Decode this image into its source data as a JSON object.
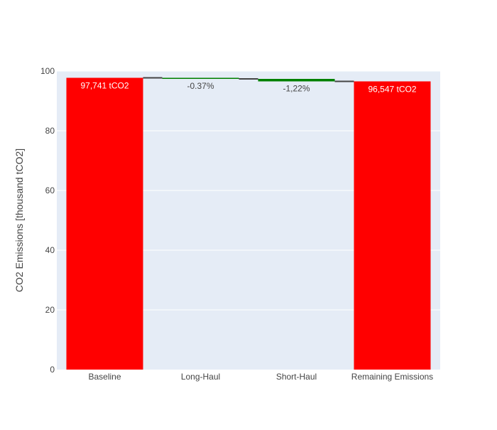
{
  "chart_data": {
    "type": "waterfall",
    "title": "",
    "xlabel": "",
    "ylabel": "CO2 Emissions [thousand tCO2]",
    "ylim": [
      0,
      100
    ],
    "yticks": [
      0,
      20,
      40,
      60,
      80,
      100
    ],
    "grid": true,
    "legend": "none",
    "categories": [
      "Baseline",
      "Long-Haul",
      "Short-Haul",
      "Remaining Emissions"
    ],
    "measures": [
      "absolute",
      "relative",
      "relative",
      "total"
    ],
    "values": [
      97.741,
      -0.36,
      -0.834,
      96.547
    ],
    "text": [
      "97,741 tCO2",
      "-0.37%",
      "-1,22%",
      "96,547 tCO2"
    ],
    "colors": {
      "total": "#ff0000",
      "decreasing": "#008000",
      "connector": "#444444",
      "plot_background": "#e5ecf6",
      "gridline": "#ffffff"
    }
  }
}
